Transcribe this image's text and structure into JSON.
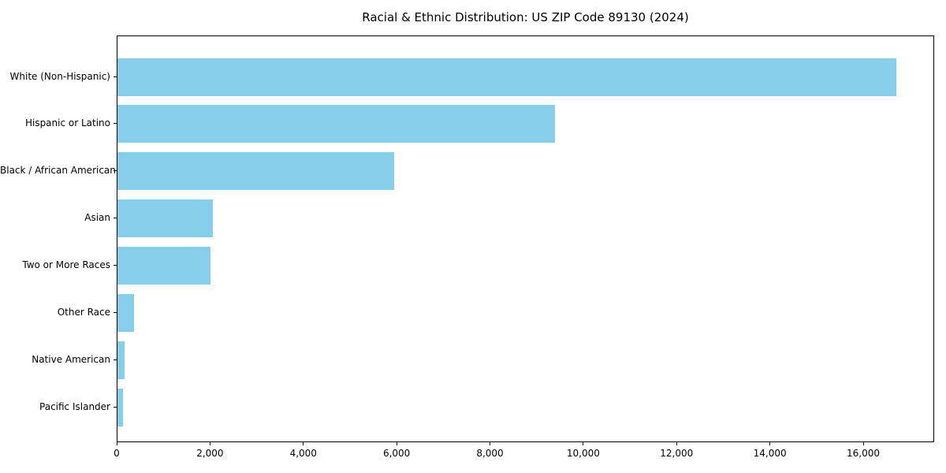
{
  "chart_data": {
    "type": "bar",
    "orientation": "horizontal",
    "title": "Racial & Ethnic Distribution: US ZIP Code 89130 (2024)",
    "categories": [
      "White (Non-Hispanic)",
      "Hispanic or Latino",
      "Black / African American",
      "Asian",
      "Two or More Races",
      "Other Race",
      "Native American",
      "Pacific Islander"
    ],
    "values": [
      16700,
      9380,
      5930,
      2040,
      1990,
      355,
      145,
      110
    ],
    "bar_color": "#87CEEB",
    "xlabel": "",
    "ylabel": "",
    "xlim": [
      0,
      17520
    ],
    "x_ticks": [
      0,
      2000,
      4000,
      6000,
      8000,
      10000,
      12000,
      14000,
      16000
    ],
    "x_tick_labels": [
      "0",
      "2,000",
      "4,000",
      "6,000",
      "8,000",
      "10,000",
      "12,000",
      "14,000",
      "16,000"
    ],
    "grid": false,
    "legend": null,
    "frame_color": "#000000",
    "background_color": "#ffffff"
  }
}
